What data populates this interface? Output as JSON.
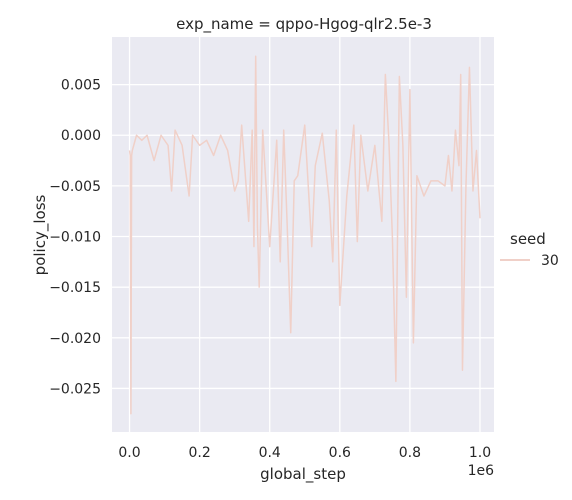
{
  "chart_data": {
    "type": "line",
    "title": "exp_name = qppo-Hgog-qlr2.5e-3",
    "xlabel": "global_step",
    "ylabel": "policy_loss",
    "x_offset_label": "1e6",
    "xlim": [
      -0.05,
      1.04
    ],
    "ylim": [
      -0.0293,
      0.0097
    ],
    "x_ticks": [
      0.0,
      0.2,
      0.4,
      0.6,
      0.8,
      1.0
    ],
    "x_tick_labels": [
      "0.0",
      "0.2",
      "0.4",
      "0.6",
      "0.8",
      "1.0"
    ],
    "y_ticks": [
      0.005,
      0.0,
      -0.005,
      -0.01,
      -0.015,
      -0.02,
      -0.025
    ],
    "y_tick_labels": [
      "0.005",
      "0.000",
      "−0.005",
      "−0.010",
      "−0.015",
      "−0.020",
      "−0.025"
    ],
    "grid": true,
    "background": "#eaeaf2",
    "legend": {
      "title": "seed",
      "placement": "right",
      "entries": [
        "30"
      ]
    },
    "series": [
      {
        "name": "30",
        "color": "#f0d0c8",
        "x": [
          0.0,
          0.002,
          0.004,
          0.006,
          0.008,
          0.012,
          0.02,
          0.035,
          0.05,
          0.07,
          0.09,
          0.11,
          0.12,
          0.13,
          0.15,
          0.17,
          0.18,
          0.2,
          0.22,
          0.24,
          0.26,
          0.28,
          0.3,
          0.31,
          0.32,
          0.34,
          0.35,
          0.355,
          0.36,
          0.365,
          0.37,
          0.38,
          0.4,
          0.42,
          0.43,
          0.44,
          0.45,
          0.46,
          0.47,
          0.48,
          0.5,
          0.52,
          0.53,
          0.55,
          0.57,
          0.58,
          0.59,
          0.6,
          0.62,
          0.64,
          0.65,
          0.66,
          0.68,
          0.7,
          0.72,
          0.73,
          0.74,
          0.75,
          0.76,
          0.77,
          0.78,
          0.79,
          0.8,
          0.81,
          0.82,
          0.84,
          0.86,
          0.88,
          0.9,
          0.91,
          0.92,
          0.93,
          0.94,
          0.945,
          0.95,
          0.96,
          0.97,
          0.98,
          0.99,
          1.0
        ],
        "y": [
          -0.0015,
          -0.002,
          -0.0275,
          -0.002,
          -0.0015,
          -0.001,
          0.0,
          -0.0005,
          0.0,
          -0.0025,
          0.0,
          -0.001,
          -0.0055,
          0.0005,
          -0.001,
          -0.006,
          0.0,
          -0.001,
          -0.0005,
          -0.002,
          0.0,
          -0.0015,
          -0.0055,
          -0.0045,
          0.001,
          -0.0085,
          0.0005,
          -0.011,
          0.0078,
          -0.009,
          -0.015,
          0.0005,
          -0.011,
          -0.0005,
          -0.0125,
          0.0005,
          -0.009,
          -0.0195,
          -0.0045,
          -0.004,
          0.001,
          -0.011,
          -0.003,
          0.0002,
          -0.0065,
          -0.0125,
          0.0005,
          -0.0168,
          -0.006,
          0.001,
          -0.0105,
          0.0,
          -0.0055,
          -0.001,
          -0.0085,
          0.006,
          -0.0005,
          -0.01,
          -0.0243,
          0.0058,
          -0.001,
          -0.016,
          0.0045,
          -0.0205,
          -0.004,
          -0.006,
          -0.0045,
          -0.0045,
          -0.005,
          -0.002,
          -0.0055,
          0.0005,
          -0.003,
          0.006,
          -0.0232,
          -0.005,
          0.0067,
          -0.0055,
          -0.0015,
          -0.0082
        ]
      }
    ]
  }
}
